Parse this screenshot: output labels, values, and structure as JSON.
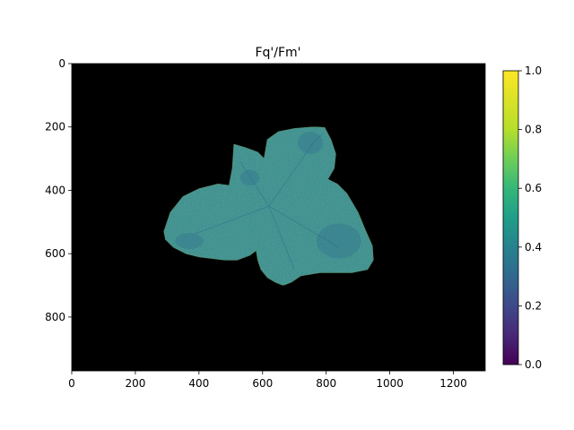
{
  "chart_data": {
    "type": "heatmap",
    "title": "Fq'/Fm'",
    "xlabel": "",
    "ylabel": "",
    "x_ticks": [
      0,
      200,
      400,
      600,
      800,
      1000,
      1200
    ],
    "y_ticks": [
      0,
      200,
      400,
      600,
      800
    ],
    "xlim": [
      0,
      1300
    ],
    "ylim": [
      970,
      0
    ],
    "background_value": "masked (black)",
    "colormap": "viridis",
    "colorbar": {
      "label": "",
      "ticks": [
        "0.0",
        "0.2",
        "0.4",
        "0.6",
        "0.8",
        "1.0"
      ],
      "range": [
        0.0,
        1.0
      ]
    },
    "leaf_region": {
      "description": "plant leaf rosette, Fq'/Fm' mostly around 0.45-0.55",
      "typical_value": 0.52,
      "min_value": 0.35,
      "outline_data_coords": [
        [
          290,
          530
        ],
        [
          310,
          470
        ],
        [
          350,
          420
        ],
        [
          400,
          395
        ],
        [
          460,
          380
        ],
        [
          495,
          385
        ],
        [
          505,
          330
        ],
        [
          510,
          255
        ],
        [
          545,
          265
        ],
        [
          585,
          280
        ],
        [
          605,
          300
        ],
        [
          615,
          240
        ],
        [
          650,
          215
        ],
        [
          700,
          205
        ],
        [
          760,
          200
        ],
        [
          795,
          202
        ],
        [
          815,
          240
        ],
        [
          830,
          285
        ],
        [
          825,
          330
        ],
        [
          805,
          365
        ],
        [
          835,
          380
        ],
        [
          865,
          410
        ],
        [
          900,
          470
        ],
        [
          925,
          530
        ],
        [
          945,
          575
        ],
        [
          948,
          620
        ],
        [
          930,
          650
        ],
        [
          880,
          660
        ],
        [
          840,
          660
        ],
        [
          780,
          660
        ],
        [
          750,
          665
        ],
        [
          720,
          670
        ],
        [
          690,
          690
        ],
        [
          665,
          700
        ],
        [
          640,
          690
        ],
        [
          615,
          675
        ],
        [
          595,
          650
        ],
        [
          585,
          620
        ],
        [
          580,
          590
        ],
        [
          560,
          605
        ],
        [
          520,
          620
        ],
        [
          480,
          620
        ],
        [
          440,
          615
        ],
        [
          400,
          610
        ],
        [
          360,
          600
        ],
        [
          320,
          580
        ],
        [
          295,
          555
        ]
      ]
    }
  },
  "colors": {
    "background": "#000000",
    "leaf_main": "#26908d",
    "leaf_dark": "#2f6c8e",
    "leaf_light": "#2a9c89",
    "leaf_edge": "#3d8a6a"
  }
}
